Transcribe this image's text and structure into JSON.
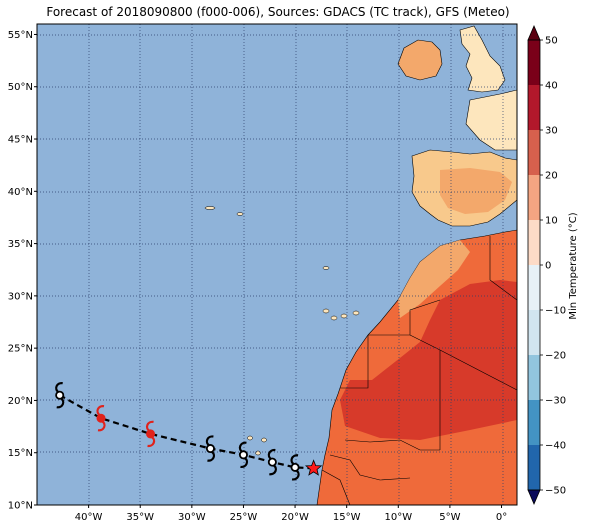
{
  "title": "Forecast of 2018090800 (f000-006), Sources: GDACS (TC track), GFS (Meteo)",
  "map": {
    "lon_range": [
      -45,
      1.5
    ],
    "lat_range": [
      10,
      56
    ],
    "lat_ticks": [
      "10°N",
      "15°N",
      "20°N",
      "25°N",
      "30°N",
      "35°N",
      "40°N",
      "45°N",
      "50°N",
      "55°N"
    ],
    "lon_ticks": [
      "40°W",
      "35°W",
      "30°W",
      "25°W",
      "20°W",
      "15°W",
      "10°W",
      "5°W",
      "0°"
    ],
    "ocean_color": "#8fb3d9",
    "gridlines": "dotted"
  },
  "track": {
    "points": [
      {
        "lon": -42.8,
        "lat": 20.5,
        "marker": "cyclone-black"
      },
      {
        "lon": -38.8,
        "lat": 18.3,
        "marker": "cyclone-red"
      },
      {
        "lon": -34.0,
        "lat": 16.8,
        "marker": "cyclone-red"
      },
      {
        "lon": -28.2,
        "lat": 15.4,
        "marker": "cyclone-black"
      },
      {
        "lon": -25.0,
        "lat": 14.8,
        "marker": "cyclone-black"
      },
      {
        "lon": -22.2,
        "lat": 14.1,
        "marker": "cyclone-black"
      },
      {
        "lon": -20.0,
        "lat": 13.6,
        "marker": "cyclone-black"
      },
      {
        "lon": -18.2,
        "lat": 13.5,
        "marker": "star-red"
      }
    ],
    "line_style": "dashed"
  },
  "colorbar": {
    "label": "Min Temperature (°C)",
    "ticks": [
      "50",
      "40",
      "30",
      "20",
      "10",
      "0",
      "−10",
      "−20",
      "−30",
      "−40",
      "−50"
    ],
    "colors": [
      "#b2182b",
      "#d6604d",
      "#f4a582",
      "#fddbc7",
      "#d1e5f0",
      "#92c5de",
      "#4393c3",
      "#2166ac"
    ]
  }
}
